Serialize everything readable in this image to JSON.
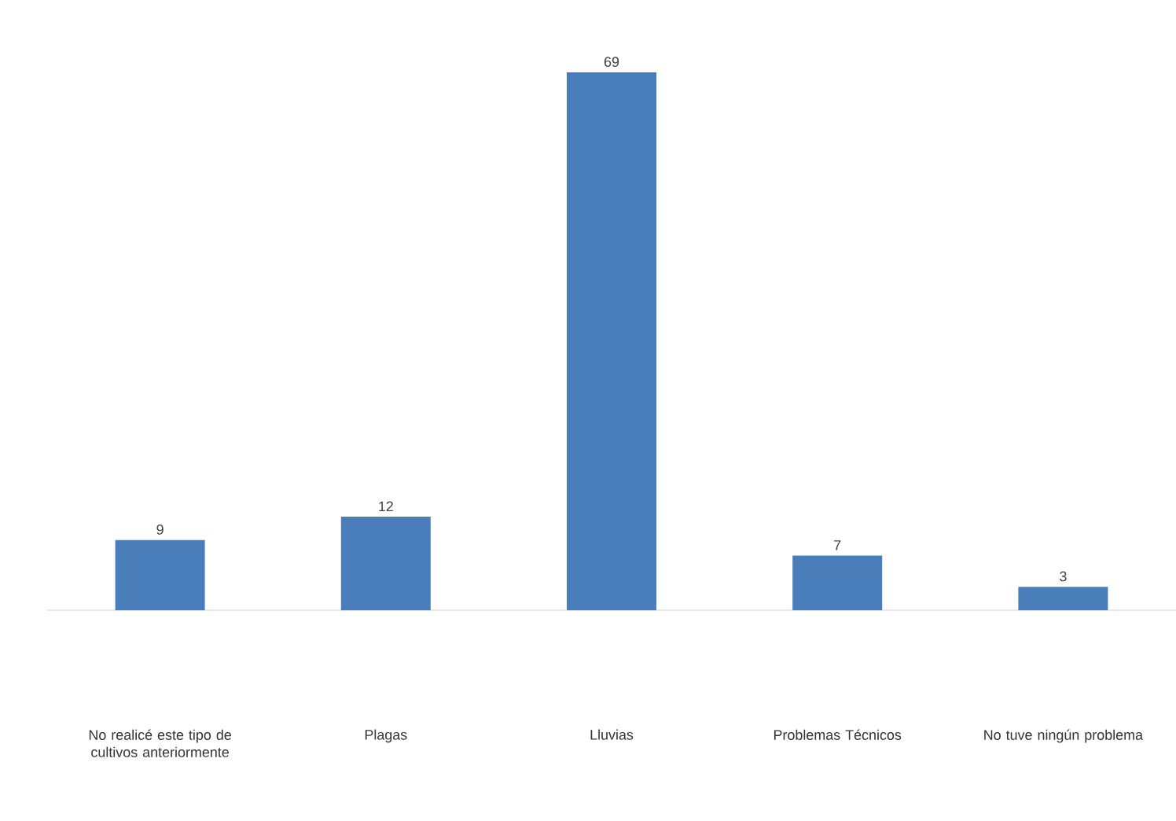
{
  "chart_data": {
    "type": "bar",
    "categories": [
      "No realicé este tipo de cultivos anteriormente",
      "Plagas",
      "Lluvias",
      "Problemas Técnicos",
      "No tuve ningún problema"
    ],
    "values": [
      9,
      12,
      69,
      7,
      3
    ],
    "color": "#4a7ebb",
    "data_labels": true
  }
}
